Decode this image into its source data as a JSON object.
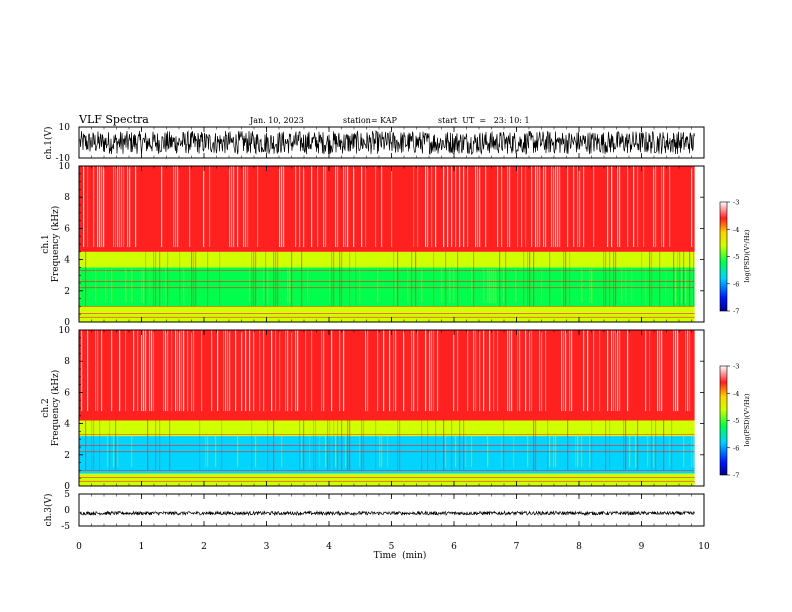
{
  "header": {
    "title": "VLF Spectra",
    "date": "Jan. 10, 2023",
    "station": "station= KAP",
    "start": "start  UT  =   23: 10: 1"
  },
  "colors": {
    "wave": "#000000",
    "palette": [
      "#00008c",
      "#0018ff",
      "#00d4ff",
      "#00ff4c",
      "#cfff00",
      "#ffd200",
      "#ff2020",
      "#ffffff"
    ]
  },
  "chart_data": [
    {
      "type": "line",
      "panel": "ch1-waveform",
      "ylabel": "ch.1(V)",
      "ylim": [
        -10,
        10
      ],
      "yticks": [
        "10",
        "-10"
      ],
      "xlim": [
        0,
        10
      ],
      "description_level": "dense noise oscillating roughly between -8 and +8 V"
    },
    {
      "type": "heatmap",
      "panel": "ch1-spectrogram",
      "ylabel": "ch.1\nFrequency  (kHz)",
      "ylim": [
        0,
        10
      ],
      "yticks": [
        "0",
        "2",
        "4",
        "6",
        "8",
        "10"
      ],
      "xlim": [
        0,
        10
      ],
      "data_end_min": 9.85,
      "colorbar": {
        "label": "log(PSD)(V²/Hz)",
        "range": [
          -7,
          -3
        ],
        "ticks": [
          "-3",
          "-4",
          "-5",
          "-6",
          "-7"
        ]
      },
      "bands_khz": [
        {
          "from": 0,
          "to": 0.6,
          "level": -4.6
        },
        {
          "from": 0.6,
          "to": 1.0,
          "level": -5.0
        },
        {
          "from": 1.0,
          "to": 3.5,
          "level": -5.4
        },
        {
          "from": 3.5,
          "to": 4.5,
          "level": -4.6
        },
        {
          "from": 4.5,
          "to": 10,
          "level": -3.6
        }
      ]
    },
    {
      "type": "heatmap",
      "panel": "ch2-spectrogram",
      "ylabel": "ch.2\nFrequency  (kHz)",
      "ylim": [
        0,
        10
      ],
      "yticks": [
        "0",
        "2",
        "4",
        "6",
        "8",
        "10"
      ],
      "xlim": [
        0,
        10
      ],
      "data_end_min": 9.85,
      "colorbar": {
        "label": "log(PSD)(V²/Hz)",
        "range": [
          -7,
          -3
        ],
        "ticks": [
          "-3",
          "-4",
          "-5",
          "-6",
          "-7"
        ]
      },
      "bands_khz": [
        {
          "from": 0,
          "to": 0.8,
          "level": -4.5
        },
        {
          "from": 0.8,
          "to": 3.2,
          "level": -5.6
        },
        {
          "from": 3.2,
          "to": 4.2,
          "level": -4.6
        },
        {
          "from": 4.2,
          "to": 10,
          "level": -3.6
        }
      ]
    },
    {
      "type": "line",
      "panel": "ch3-waveform",
      "ylabel": "ch.3(V)",
      "ylim": [
        -5,
        5
      ],
      "yticks": [
        "5",
        "0",
        "-5"
      ],
      "xlim": [
        0,
        10
      ],
      "description_level": "thin noise band near -1 V"
    }
  ],
  "xaxis": {
    "label": "Time  (min)",
    "ticks": [
      "0",
      "1",
      "2",
      "3",
      "4",
      "5",
      "6",
      "7",
      "8",
      "9",
      "10"
    ]
  }
}
